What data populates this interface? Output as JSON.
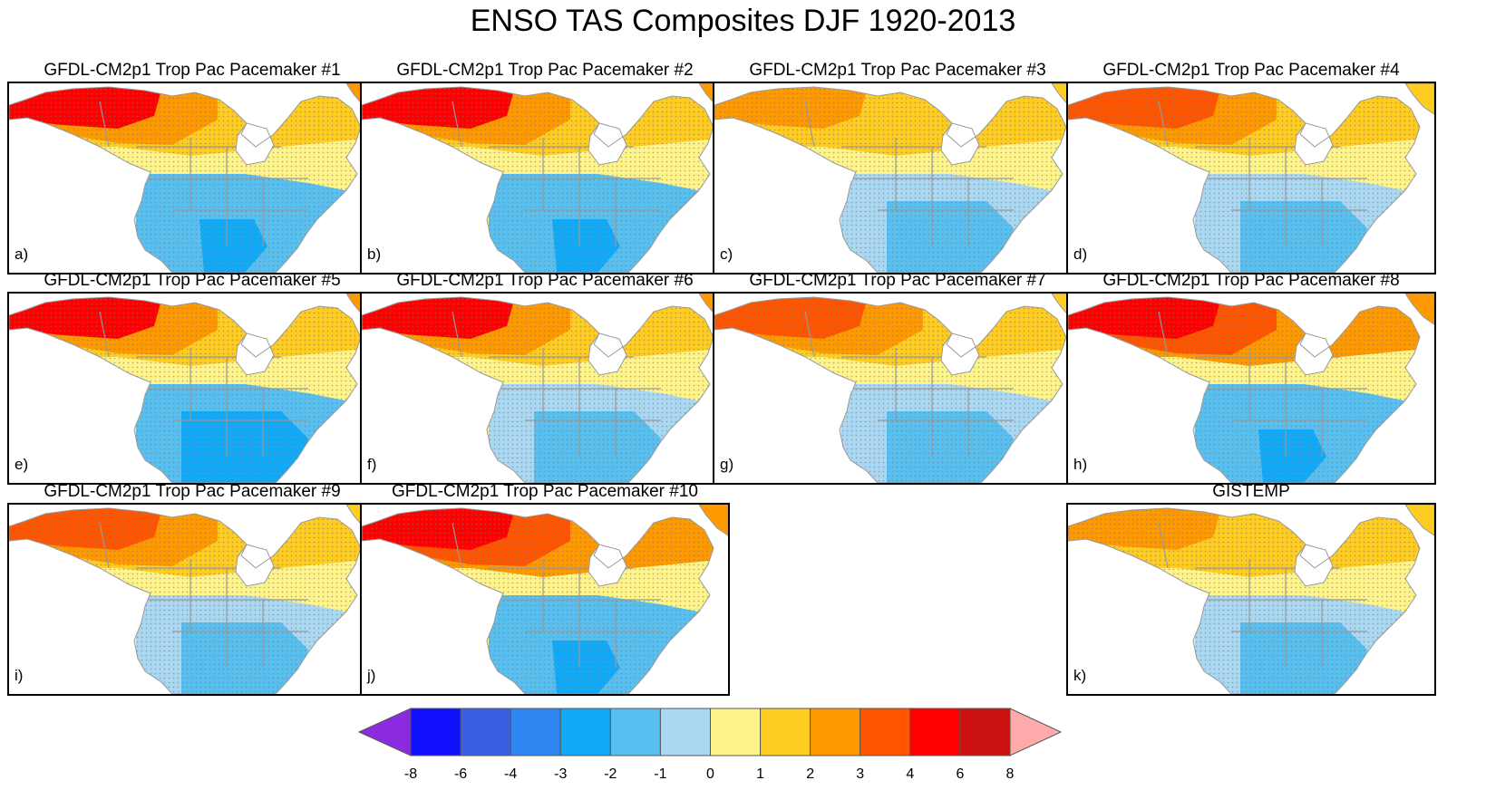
{
  "title": "ENSO TAS Composites DJF 1920-2013",
  "panels": [
    {
      "title": "GFDL-CM2p1 Trop Pac Pacemaker #1",
      "label": "a)",
      "warm": 4,
      "south": -2.5
    },
    {
      "title": "GFDL-CM2p1 Trop Pac Pacemaker #2",
      "label": "b)",
      "warm": 4,
      "south": -2.5
    },
    {
      "title": "GFDL-CM2p1 Trop Pac Pacemaker #3",
      "label": "c)",
      "warm": 2.5,
      "south": -2
    },
    {
      "title": "GFDL-CM2p1 Trop Pac Pacemaker #4",
      "label": "d)",
      "warm": 3.5,
      "south": -1.5
    },
    {
      "title": "GFDL-CM2p1 Trop Pac Pacemaker #5",
      "label": "e)",
      "warm": 4,
      "south": -3
    },
    {
      "title": "GFDL-CM2p1 Trop Pac Pacemaker #6",
      "label": "f)",
      "warm": 4,
      "south": -2
    },
    {
      "title": "GFDL-CM2p1 Trop Pac Pacemaker #7",
      "label": "g)",
      "warm": 3,
      "south": -2
    },
    {
      "title": "GFDL-CM2p1 Trop Pac Pacemaker #8",
      "label": "h)",
      "warm": 4.5,
      "south": -2.5
    },
    {
      "title": "GFDL-CM2p1 Trop Pac Pacemaker #9",
      "label": "i)",
      "warm": 3,
      "south": -1.5
    },
    {
      "title": "GFDL-CM2p1 Trop Pac Pacemaker #10",
      "label": "j)",
      "warm": 4.5,
      "south": -2.5
    },
    {
      "title": "GISTEMP",
      "label": "k)",
      "warm": 2.5,
      "south": -1.5
    }
  ],
  "colorbar": {
    "ticks": [
      "-8",
      "-6",
      "-4",
      "-3",
      "-2",
      "-1",
      "0",
      "1",
      "2",
      "3",
      "4",
      "6",
      "8"
    ],
    "colors": [
      "#1010ff",
      "#3a5fe0",
      "#2f86f0",
      "#10aaf8",
      "#58c0f0",
      "#aad8f2",
      "#fff48a",
      "#ffcc22",
      "#ff9900",
      "#ff5500",
      "#ff0000",
      "#cc1111"
    ],
    "under_color": "#8a2be2",
    "over_color": "#ffaaaa"
  }
}
